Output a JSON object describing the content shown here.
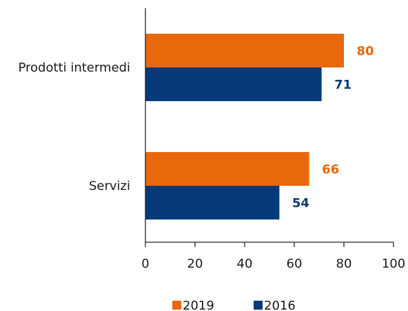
{
  "chart_data": {
    "type": "bar",
    "orientation": "horizontal",
    "categories": [
      "Prodotti intermedi",
      "Servizi"
    ],
    "series": [
      {
        "name": "2019",
        "values": [
          80,
          66
        ],
        "color": "#E8680B"
      },
      {
        "name": "2016",
        "values": [
          71,
          54
        ],
        "color": "#073A7A"
      }
    ],
    "xlim": [
      0,
      100
    ],
    "xticks": [
      "0",
      "20",
      "40",
      "60",
      "80",
      "100"
    ],
    "data_labels": [
      [
        "80",
        "66"
      ],
      [
        "71",
        "54"
      ]
    ],
    "grid": false,
    "legend_position": "bottom"
  }
}
